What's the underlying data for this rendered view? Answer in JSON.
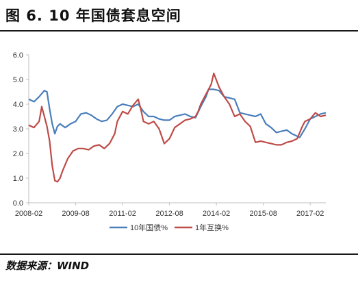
{
  "figure": {
    "title": "图 6.  10 年国债套息空间",
    "source": "数据来源：WIND"
  },
  "colors": {
    "series_10y": "#4a7ebb",
    "series_swap": "#be4b48",
    "axis": "#bfbfbf",
    "text": "#333333"
  },
  "chart_data": {
    "type": "line",
    "x_tick_labels": [
      "2008-02",
      "2009-08",
      "2011-02",
      "2012-08",
      "2014-02",
      "2015-08",
      "2017-02"
    ],
    "x_tick_values": [
      "2008-02",
      "2009-08",
      "2011-02",
      "2012-08",
      "2014-02",
      "2015-08",
      "2017-02"
    ],
    "xlim": [
      "2008-02",
      "2017-08"
    ],
    "ylim": [
      0,
      6
    ],
    "y_ticks": [
      "0.0",
      "1.0",
      "2.0",
      "3.0",
      "4.0",
      "5.0",
      "6.0"
    ],
    "legend_position": "bottom",
    "grid": false,
    "series": [
      {
        "name": "10年国债%",
        "x": [
          "2008-02",
          "2008-04",
          "2008-06",
          "2008-08",
          "2008-09",
          "2008-10",
          "2008-11",
          "2008-12",
          "2009-01",
          "2009-02",
          "2009-04",
          "2009-06",
          "2009-08",
          "2009-10",
          "2009-12",
          "2010-02",
          "2010-04",
          "2010-06",
          "2010-08",
          "2010-10",
          "2010-12",
          "2011-02",
          "2011-04",
          "2011-06",
          "2011-08",
          "2011-10",
          "2011-12",
          "2012-02",
          "2012-04",
          "2012-06",
          "2012-08",
          "2012-10",
          "2012-12",
          "2013-02",
          "2013-04",
          "2013-06",
          "2013-08",
          "2013-10",
          "2013-11",
          "2014-01",
          "2014-03",
          "2014-05",
          "2014-07",
          "2014-09",
          "2014-11",
          "2015-01",
          "2015-03",
          "2015-05",
          "2015-07",
          "2015-09",
          "2015-11",
          "2016-01",
          "2016-03",
          "2016-05",
          "2016-07",
          "2016-09",
          "2016-10",
          "2016-12",
          "2017-02",
          "2017-04",
          "2017-06",
          "2017-08"
        ],
        "values": [
          4.2,
          4.1,
          4.3,
          4.55,
          4.5,
          3.8,
          3.2,
          2.8,
          3.1,
          3.2,
          3.05,
          3.2,
          3.3,
          3.6,
          3.65,
          3.55,
          3.4,
          3.3,
          3.35,
          3.6,
          3.9,
          4.0,
          3.95,
          3.9,
          4.0,
          3.7,
          3.5,
          3.5,
          3.4,
          3.35,
          3.35,
          3.5,
          3.55,
          3.6,
          3.5,
          3.45,
          3.9,
          4.3,
          4.6,
          4.6,
          4.55,
          4.3,
          4.25,
          4.2,
          3.65,
          3.6,
          3.55,
          3.5,
          3.6,
          3.2,
          3.05,
          2.85,
          2.9,
          2.95,
          2.8,
          2.7,
          2.65,
          3.0,
          3.4,
          3.5,
          3.6,
          3.65
        ]
      },
      {
        "name": "1年互换%",
        "x": [
          "2008-02",
          "2008-04",
          "2008-06",
          "2008-07",
          "2008-08",
          "2008-09",
          "2008-10",
          "2008-11",
          "2008-12",
          "2009-01",
          "2009-02",
          "2009-03",
          "2009-05",
          "2009-07",
          "2009-09",
          "2009-11",
          "2010-01",
          "2010-03",
          "2010-05",
          "2010-07",
          "2010-09",
          "2010-11",
          "2010-12",
          "2011-02",
          "2011-04",
          "2011-06",
          "2011-08",
          "2011-09",
          "2011-10",
          "2011-12",
          "2012-02",
          "2012-04",
          "2012-06",
          "2012-08",
          "2012-10",
          "2012-12",
          "2013-02",
          "2013-04",
          "2013-06",
          "2013-07",
          "2013-08",
          "2013-10",
          "2013-12",
          "2014-01",
          "2014-03",
          "2014-05",
          "2014-07",
          "2014-09",
          "2014-11",
          "2015-01",
          "2015-03",
          "2015-05",
          "2015-07",
          "2015-09",
          "2015-11",
          "2016-01",
          "2016-03",
          "2016-05",
          "2016-07",
          "2016-09",
          "2016-11",
          "2016-12",
          "2017-02",
          "2017-04",
          "2017-06",
          "2017-08"
        ],
        "values": [
          3.15,
          3.05,
          3.3,
          3.9,
          3.5,
          3.1,
          2.5,
          1.5,
          0.9,
          0.85,
          1.0,
          1.3,
          1.8,
          2.1,
          2.2,
          2.2,
          2.15,
          2.3,
          2.35,
          2.2,
          2.4,
          2.8,
          3.3,
          3.7,
          3.6,
          3.95,
          4.2,
          3.8,
          3.3,
          3.2,
          3.3,
          3.0,
          2.4,
          2.6,
          3.05,
          3.2,
          3.35,
          3.4,
          3.5,
          3.7,
          4.0,
          4.4,
          4.8,
          5.25,
          4.7,
          4.3,
          4.0,
          3.5,
          3.6,
          3.3,
          3.1,
          2.45,
          2.5,
          2.45,
          2.4,
          2.35,
          2.35,
          2.45,
          2.5,
          2.6,
          3.1,
          3.3,
          3.4,
          3.65,
          3.5,
          3.55
        ]
      }
    ]
  }
}
